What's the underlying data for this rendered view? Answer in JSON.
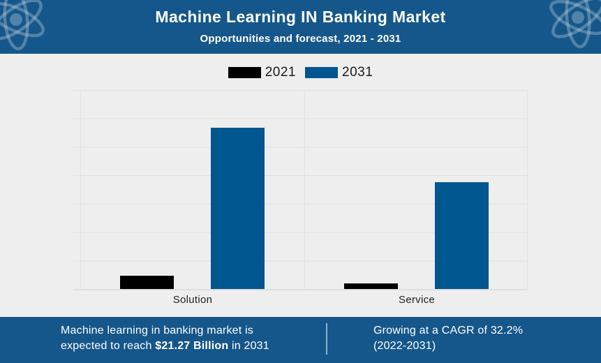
{
  "header": {
    "title": "Machine Learning IN Banking Market",
    "subtitle": "Opportunities and forecast, 2021 - 2031"
  },
  "legend": {
    "items": [
      {
        "label": "2021",
        "color": "#000000"
      },
      {
        "label": "2031",
        "color": "#00568e"
      }
    ]
  },
  "chart_data": {
    "type": "bar",
    "categories": [
      "Solution",
      "Service"
    ],
    "series": [
      {
        "name": "2021",
        "color": "#000000",
        "values": [
          1.05,
          0.45
        ]
      },
      {
        "name": "2031",
        "color": "#00568e",
        "values": [
          12.8,
          8.5
        ]
      }
    ],
    "title": "Machine Learning IN Banking Market",
    "subtitle": "Opportunities and forecast, 2021 - 2031",
    "xlabel": "",
    "ylabel": "",
    "ylim": [
      0,
      15.8
    ],
    "values_estimated_from_bar_heights": true,
    "value_unit": "USD Billion",
    "grid": true,
    "legend_position": "top",
    "annotations": [
      "Machine learning in banking market is expected to reach $21.27 Billion in 2031",
      "Growing at a CAGR of 32.2% (2022-2031)"
    ]
  },
  "footer": {
    "left_line1": "Machine learning in banking market is",
    "left_line2_pre": "expected to reach ",
    "left_line2_bold": "$21.27 Billion",
    "left_line2_post": " in 2031",
    "right_line1": "Growing at a CAGR of 32.2%",
    "right_line2": "(2022-2031)"
  },
  "colors": {
    "banner": "#15578a",
    "chart_background": "#eeeeee",
    "bar_2021": "#000000",
    "bar_2031": "#00568e"
  }
}
